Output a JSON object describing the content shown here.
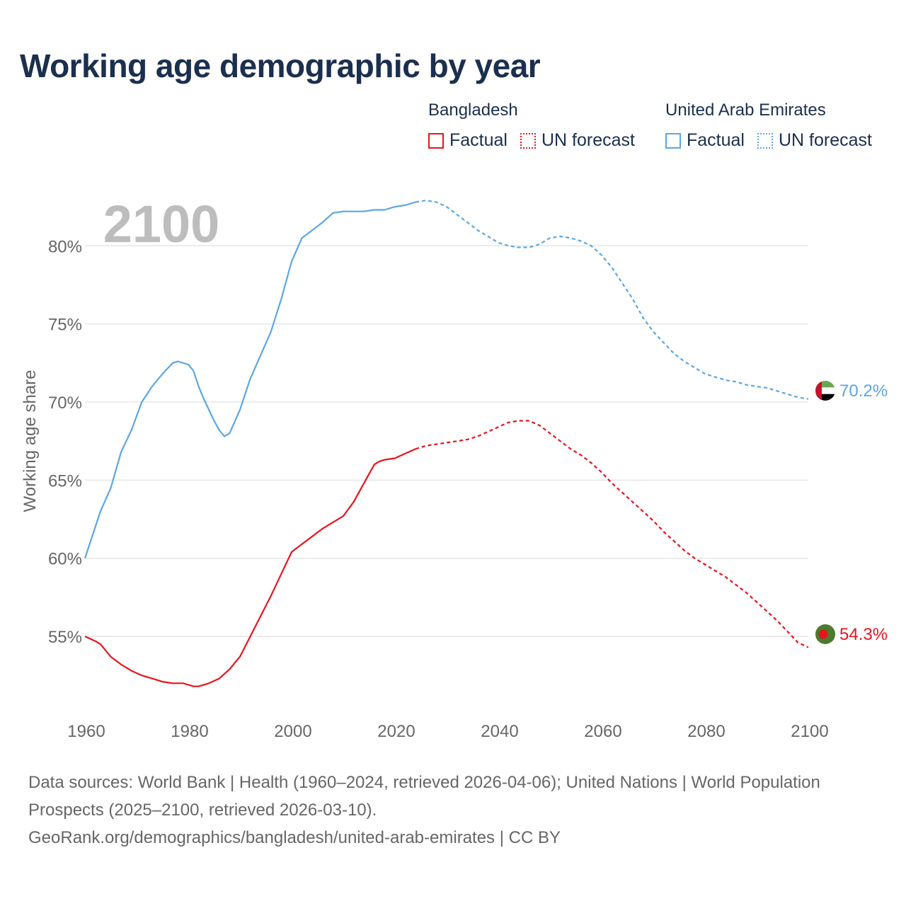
{
  "title": "Working age demographic by year",
  "legend": {
    "groups": [
      {
        "name": "Bangladesh",
        "color": "#e8141c",
        "items": [
          "Factual",
          "UN forecast"
        ]
      },
      {
        "name": "United Arab Emirates",
        "color": "#5ba7e6",
        "items": [
          "Factual",
          "UN forecast"
        ]
      }
    ]
  },
  "footer": {
    "line1": "Data sources: World Bank | Health (1960–2024, retrieved 2026-04-06); United Nations | World Population Prospects (2025–2100, retrieved 2026-03-10).",
    "line2": "GeoRank.org/demographics/bangladesh/united-arab-emirates | CC BY"
  },
  "chart_data": {
    "type": "line",
    "title": "Working age demographic by year",
    "ylabel": "Working age share",
    "xlabel": "",
    "year_watermark": "2100",
    "xlim": [
      1960,
      2100
    ],
    "ylim": [
      50.2,
      83.5
    ],
    "x_ticks": [
      "1960",
      "1980",
      "2000",
      "2020",
      "2040",
      "2060",
      "2080",
      "2100"
    ],
    "y_ticks": [
      "55%",
      "60%",
      "65%",
      "70%",
      "75%",
      "80%"
    ],
    "y_tick_values": [
      55,
      60,
      65,
      70,
      75,
      80
    ],
    "grid": true,
    "factual_range": [
      1960,
      2024
    ],
    "forecast_range": [
      2024,
      2100
    ],
    "series": [
      {
        "name": "United Arab Emirates",
        "color": "#5ba7e6",
        "end_label": "70.2%",
        "flag": "uae-flag",
        "x": [
          1960,
          1962,
          1963,
          1965,
          1967,
          1969,
          1971,
          1973,
          1975,
          1977,
          1978,
          1980,
          1981,
          1982,
          1983,
          1984,
          1985,
          1986,
          1987,
          1988,
          1990,
          1992,
          1994,
          1996,
          1998,
          2000,
          2002,
          2004,
          2006,
          2008,
          2010,
          2012,
          2014,
          2016,
          2018,
          2020,
          2022,
          2024,
          2026,
          2028,
          2030,
          2032,
          2034,
          2036,
          2038,
          2040,
          2042,
          2044,
          2046,
          2048,
          2050,
          2052,
          2054,
          2056,
          2058,
          2060,
          2062,
          2064,
          2066,
          2068,
          2070,
          2072,
          2074,
          2076,
          2078,
          2080,
          2082,
          2084,
          2086,
          2088,
          2090,
          2092,
          2094,
          2096,
          2098,
          2100
        ],
        "y": [
          60.0,
          62.0,
          63.0,
          64.5,
          66.8,
          68.2,
          70.0,
          71.0,
          71.8,
          72.5,
          72.6,
          72.4,
          72.0,
          71.0,
          70.2,
          69.5,
          68.8,
          68.2,
          67.8,
          68.0,
          69.5,
          71.5,
          73.0,
          74.5,
          76.6,
          79.0,
          80.5,
          81.0,
          81.5,
          82.1,
          82.2,
          82.2,
          82.2,
          82.3,
          82.3,
          82.5,
          82.6,
          82.8,
          82.9,
          82.8,
          82.5,
          82.0,
          81.5,
          81.0,
          80.6,
          80.2,
          80.0,
          79.9,
          79.9,
          80.1,
          80.5,
          80.6,
          80.5,
          80.3,
          80.0,
          79.4,
          78.6,
          77.6,
          76.6,
          75.4,
          74.5,
          73.8,
          73.1,
          72.6,
          72.2,
          71.8,
          71.6,
          71.4,
          71.3,
          71.1,
          71.0,
          70.9,
          70.7,
          70.5,
          70.3,
          70.2
        ]
      },
      {
        "name": "Bangladesh",
        "color": "#e8141c",
        "end_label": "54.3%",
        "flag": "bangladesh-flag",
        "x": [
          1960,
          1962,
          1963,
          1965,
          1967,
          1969,
          1971,
          1973,
          1975,
          1977,
          1979,
          1980,
          1981,
          1982,
          1984,
          1986,
          1988,
          1990,
          1992,
          1994,
          1996,
          1998,
          2000,
          2002,
          2004,
          2006,
          2008,
          2010,
          2012,
          2014,
          2016,
          2017,
          2018,
          2020,
          2022,
          2024,
          2026,
          2028,
          2030,
          2032,
          2034,
          2036,
          2038,
          2040,
          2042,
          2044,
          2046,
          2048,
          2050,
          2052,
          2054,
          2056,
          2058,
          2060,
          2062,
          2064,
          2066,
          2068,
          2070,
          2072,
          2074,
          2076,
          2078,
          2080,
          2082,
          2084,
          2086,
          2088,
          2090,
          2092,
          2094,
          2096,
          2098,
          2100
        ],
        "y": [
          55.0,
          54.7,
          54.5,
          53.7,
          53.2,
          52.8,
          52.5,
          52.3,
          52.1,
          52.0,
          52.0,
          51.9,
          51.8,
          51.8,
          52.0,
          52.3,
          52.9,
          53.7,
          55.0,
          56.3,
          57.6,
          59.0,
          60.4,
          60.9,
          61.4,
          61.9,
          62.3,
          62.7,
          63.6,
          64.8,
          66.0,
          66.2,
          66.3,
          66.4,
          66.7,
          67.0,
          67.2,
          67.3,
          67.4,
          67.5,
          67.6,
          67.8,
          68.1,
          68.4,
          68.7,
          68.8,
          68.8,
          68.5,
          68.0,
          67.5,
          67.0,
          66.6,
          66.1,
          65.5,
          64.8,
          64.2,
          63.6,
          63.0,
          62.4,
          61.7,
          61.1,
          60.5,
          60.0,
          59.6,
          59.2,
          58.8,
          58.3,
          57.8,
          57.2,
          56.6,
          56.0,
          55.3,
          54.6,
          54.3
        ]
      }
    ]
  }
}
